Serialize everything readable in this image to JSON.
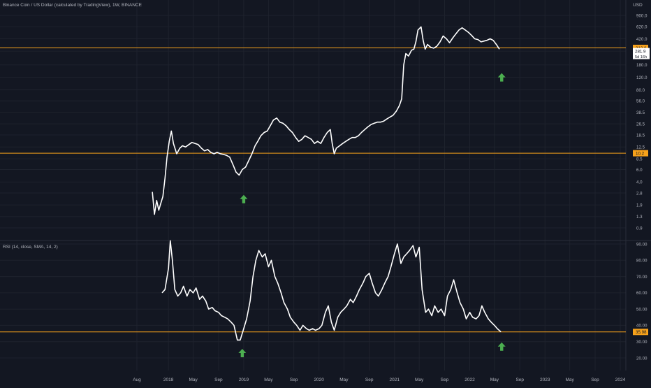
{
  "header": {
    "symbol_title": "Binance Coin / US Dollar (calculated by TradingView), 1W, BINANCE",
    "currency": "USD"
  },
  "colors": {
    "background": "#131722",
    "grid": "#1e222d",
    "axis_text": "#b2b5be",
    "line": "#ffffff",
    "level": "#f7a21b",
    "arrow": "#4caf50"
  },
  "chart_data": [
    {
      "type": "line",
      "panel": "price",
      "y_scale": "log",
      "ylim": [
        0.5,
        1200
      ],
      "y_ticks": [
        900.0,
        620.0,
        420.0,
        281.9,
        180.0,
        120.0,
        80.0,
        56.0,
        38.5,
        26.5,
        18.5,
        12.5,
        8.5,
        6.0,
        4.0,
        2.8,
        1.9,
        1.3,
        0.9
      ],
      "y_tick_labels": [
        "900.0",
        "620.0",
        "420.0",
        "281.9",
        "180.0",
        "120.0",
        "80.0",
        "56.0",
        "38.5",
        "26.5",
        "18.5",
        "12.5",
        "8.5",
        "6.0",
        "4.0",
        "2.8",
        "1.9",
        "1.3",
        "0.9"
      ],
      "x_tick_labels": [
        "Aug",
        "2018",
        "May",
        "Sep",
        "2019",
        "May",
        "Sep",
        "2020",
        "May",
        "Sep",
        "2021",
        "May",
        "Sep",
        "2022",
        "May",
        "Sep",
        "2023",
        "May",
        "Sep",
        "2024"
      ],
      "x_tick_dates": [
        "2017-08",
        "2018-01",
        "2018-05",
        "2018-09",
        "2019-01",
        "2019-05",
        "2019-09",
        "2020-01",
        "2020-05",
        "2020-09",
        "2021-01",
        "2021-05",
        "2021-09",
        "2022-01",
        "2022-05",
        "2022-09",
        "2023-01",
        "2023-05",
        "2023-09",
        "2024-01"
      ],
      "x": [
        "2017-10-15",
        "2017-10-25",
        "2017-11-05",
        "2017-11-15",
        "2017-11-25",
        "2017-12-05",
        "2017-12-15",
        "2017-12-25",
        "2018-01-05",
        "2018-01-15",
        "2018-01-25",
        "2018-02-10",
        "2018-02-25",
        "2018-03-10",
        "2018-03-25",
        "2018-04-10",
        "2018-04-25",
        "2018-05-10",
        "2018-05-25",
        "2018-06-10",
        "2018-06-25",
        "2018-07-10",
        "2018-07-25",
        "2018-08-10",
        "2018-08-25",
        "2018-09-10",
        "2018-09-25",
        "2018-10-10",
        "2018-10-25",
        "2018-11-10",
        "2018-11-25",
        "2018-12-10",
        "2018-12-25",
        "2019-01-10",
        "2019-01-25",
        "2019-02-10",
        "2019-02-25",
        "2019-03-10",
        "2019-03-25",
        "2019-04-10",
        "2019-04-25",
        "2019-05-10",
        "2019-05-25",
        "2019-06-10",
        "2019-06-25",
        "2019-07-10",
        "2019-07-25",
        "2019-08-10",
        "2019-08-25",
        "2019-09-10",
        "2019-09-25",
        "2019-10-10",
        "2019-10-25",
        "2019-11-10",
        "2019-11-25",
        "2019-12-10",
        "2019-12-25",
        "2020-01-10",
        "2020-01-25",
        "2020-02-10",
        "2020-02-25",
        "2020-03-05",
        "2020-03-15",
        "2020-03-25",
        "2020-04-10",
        "2020-04-25",
        "2020-05-10",
        "2020-05-25",
        "2020-06-10",
        "2020-06-25",
        "2020-07-10",
        "2020-07-25",
        "2020-08-10",
        "2020-08-25",
        "2020-09-10",
        "2020-09-25",
        "2020-10-10",
        "2020-10-25",
        "2020-11-10",
        "2020-11-25",
        "2020-12-10",
        "2020-12-25",
        "2021-01-10",
        "2021-01-25",
        "2021-02-05",
        "2021-02-15",
        "2021-02-25",
        "2021-03-10",
        "2021-03-25",
        "2021-04-05",
        "2021-04-15",
        "2021-04-25",
        "2021-05-10",
        "2021-05-20",
        "2021-05-30",
        "2021-06-10",
        "2021-06-25",
        "2021-07-10",
        "2021-07-25",
        "2021-08-10",
        "2021-08-25",
        "2021-09-10",
        "2021-09-25",
        "2021-10-10",
        "2021-10-25",
        "2021-11-10",
        "2021-11-25",
        "2021-12-10",
        "2021-12-25",
        "2022-01-10",
        "2022-01-25",
        "2022-02-10",
        "2022-02-25",
        "2022-03-10",
        "2022-03-25",
        "2022-04-10",
        "2022-04-25",
        "2022-05-10",
        "2022-05-25"
      ],
      "values": [
        2.9,
        1.4,
        2.2,
        1.6,
        2.0,
        2.5,
        4.5,
        9.0,
        15.0,
        21.0,
        14.0,
        10.0,
        12.0,
        13.0,
        12.5,
        13.5,
        14.5,
        14.0,
        13.5,
        12.0,
        11.0,
        11.5,
        10.5,
        10.0,
        10.5,
        10.0,
        9.8,
        9.5,
        9.0,
        7.0,
        5.5,
        5.0,
        6.0,
        6.5,
        8.0,
        10.0,
        13.0,
        15.0,
        18.0,
        20.0,
        21.0,
        25.0,
        30.0,
        32.0,
        28.0,
        27.0,
        25.0,
        22.0,
        20.0,
        17.0,
        15.0,
        16.0,
        18.0,
        17.0,
        16.0,
        14.0,
        15.0,
        14.0,
        17.0,
        20.0,
        22.0,
        14.0,
        10.0,
        12.0,
        13.0,
        14.0,
        15.0,
        16.0,
        17.0,
        17.0,
        18.0,
        20.0,
        22.0,
        24.0,
        26.0,
        27.0,
        28.0,
        28.0,
        29.0,
        31.0,
        33.0,
        35.0,
        40.0,
        48.0,
        60.0,
        180.0,
        260.0,
        240.0,
        290.0,
        300.0,
        380.0,
        560.0,
        620.0,
        400.0,
        300.0,
        350.0,
        320.0,
        310.0,
        330.0,
        380.0,
        460.0,
        420.0,
        370.0,
        430.0,
        490.0,
        560.0,
        600.0,
        560.0,
        520.0,
        470.0,
        420.0,
        410.0,
        380.0,
        390.0,
        400.0,
        420.0,
        400.0,
        350.0,
        300.0
      ],
      "level_lines": [
        312.8,
        10.2
      ],
      "level_labels": [
        "312.8",
        "10.2"
      ],
      "last_price": "281.9",
      "countdown": "5d 16h",
      "arrows": [
        {
          "x": "2019-01-01",
          "y": 2.3
        },
        {
          "x": "2022-06-05",
          "y": 120.0
        }
      ]
    },
    {
      "type": "line",
      "panel": "rsi",
      "title": "RSI (14, close, SMA, 14, 2)",
      "ylim": [
        15,
        92
      ],
      "y_ticks": [
        90,
        80,
        70,
        60,
        50,
        40,
        30,
        20
      ],
      "y_tick_labels": [
        "90.00",
        "80.00",
        "70.00",
        "60.00",
        "50.00",
        "40.00",
        "30.00",
        "20.00"
      ],
      "x": [
        "2017-12-01",
        "2017-12-15",
        "2018-01-01",
        "2018-01-10",
        "2018-01-20",
        "2018-02-01",
        "2018-02-15",
        "2018-03-01",
        "2018-03-15",
        "2018-04-01",
        "2018-04-15",
        "2018-05-01",
        "2018-05-15",
        "2018-06-01",
        "2018-06-15",
        "2018-07-01",
        "2018-07-15",
        "2018-08-01",
        "2018-08-15",
        "2018-09-01",
        "2018-09-15",
        "2018-10-01",
        "2018-10-15",
        "2018-11-01",
        "2018-11-15",
        "2018-12-01",
        "2018-12-15",
        "2019-01-01",
        "2019-01-15",
        "2019-02-01",
        "2019-02-15",
        "2019-03-01",
        "2019-03-15",
        "2019-04-01",
        "2019-04-15",
        "2019-05-01",
        "2019-05-15",
        "2019-06-01",
        "2019-06-15",
        "2019-07-01",
        "2019-07-15",
        "2019-08-01",
        "2019-08-15",
        "2019-09-01",
        "2019-09-15",
        "2019-10-01",
        "2019-10-15",
        "2019-11-01",
        "2019-11-15",
        "2019-12-01",
        "2019-12-15",
        "2020-01-01",
        "2020-01-15",
        "2020-02-01",
        "2020-02-15",
        "2020-03-01",
        "2020-03-15",
        "2020-04-01",
        "2020-04-15",
        "2020-05-01",
        "2020-05-15",
        "2020-06-01",
        "2020-06-15",
        "2020-07-01",
        "2020-07-15",
        "2020-08-01",
        "2020-08-15",
        "2020-09-01",
        "2020-09-15",
        "2020-10-01",
        "2020-10-15",
        "2020-11-01",
        "2020-11-15",
        "2020-12-01",
        "2020-12-15",
        "2021-01-01",
        "2021-01-15",
        "2021-02-01",
        "2021-02-15",
        "2021-03-01",
        "2021-03-15",
        "2021-04-01",
        "2021-04-15",
        "2021-05-01",
        "2021-05-15",
        "2021-06-01",
        "2021-06-15",
        "2021-07-01",
        "2021-07-15",
        "2021-08-01",
        "2021-08-15",
        "2021-09-01",
        "2021-09-15",
        "2021-10-01",
        "2021-10-15",
        "2021-11-01",
        "2021-11-15",
        "2021-12-01",
        "2021-12-15",
        "2022-01-01",
        "2022-01-15",
        "2022-02-01",
        "2022-02-15",
        "2022-03-01",
        "2022-03-15",
        "2022-04-01",
        "2022-04-15",
        "2022-05-01",
        "2022-05-15",
        "2022-06-01"
      ],
      "values": [
        60,
        62,
        75,
        92,
        80,
        62,
        58,
        60,
        64,
        58,
        62,
        60,
        63,
        56,
        58,
        55,
        50,
        51,
        49,
        48,
        46,
        45,
        44,
        42,
        40,
        31,
        31,
        38,
        44,
        55,
        70,
        80,
        86,
        82,
        84,
        76,
        80,
        70,
        66,
        60,
        54,
        50,
        45,
        42,
        40,
        37,
        40,
        38,
        37,
        38,
        37,
        38,
        40,
        48,
        52,
        42,
        37,
        45,
        48,
        50,
        52,
        56,
        54,
        58,
        62,
        66,
        70,
        72,
        66,
        60,
        58,
        62,
        66,
        70,
        76,
        84,
        90,
        78,
        82,
        84,
        86,
        89,
        82,
        88,
        62,
        48,
        50,
        46,
        52,
        48,
        50,
        46,
        58,
        62,
        68,
        60,
        54,
        50,
        44,
        48,
        45,
        44,
        46,
        52,
        48,
        44,
        42,
        40,
        38,
        36
      ],
      "level_lines": [
        35.98
      ],
      "level_labels": [
        "35.98"
      ],
      "arrows": [
        {
          "x": "2018-12-25",
          "y": 23.0
        },
        {
          "x": "2022-06-05",
          "y": 27.0
        }
      ]
    }
  ]
}
